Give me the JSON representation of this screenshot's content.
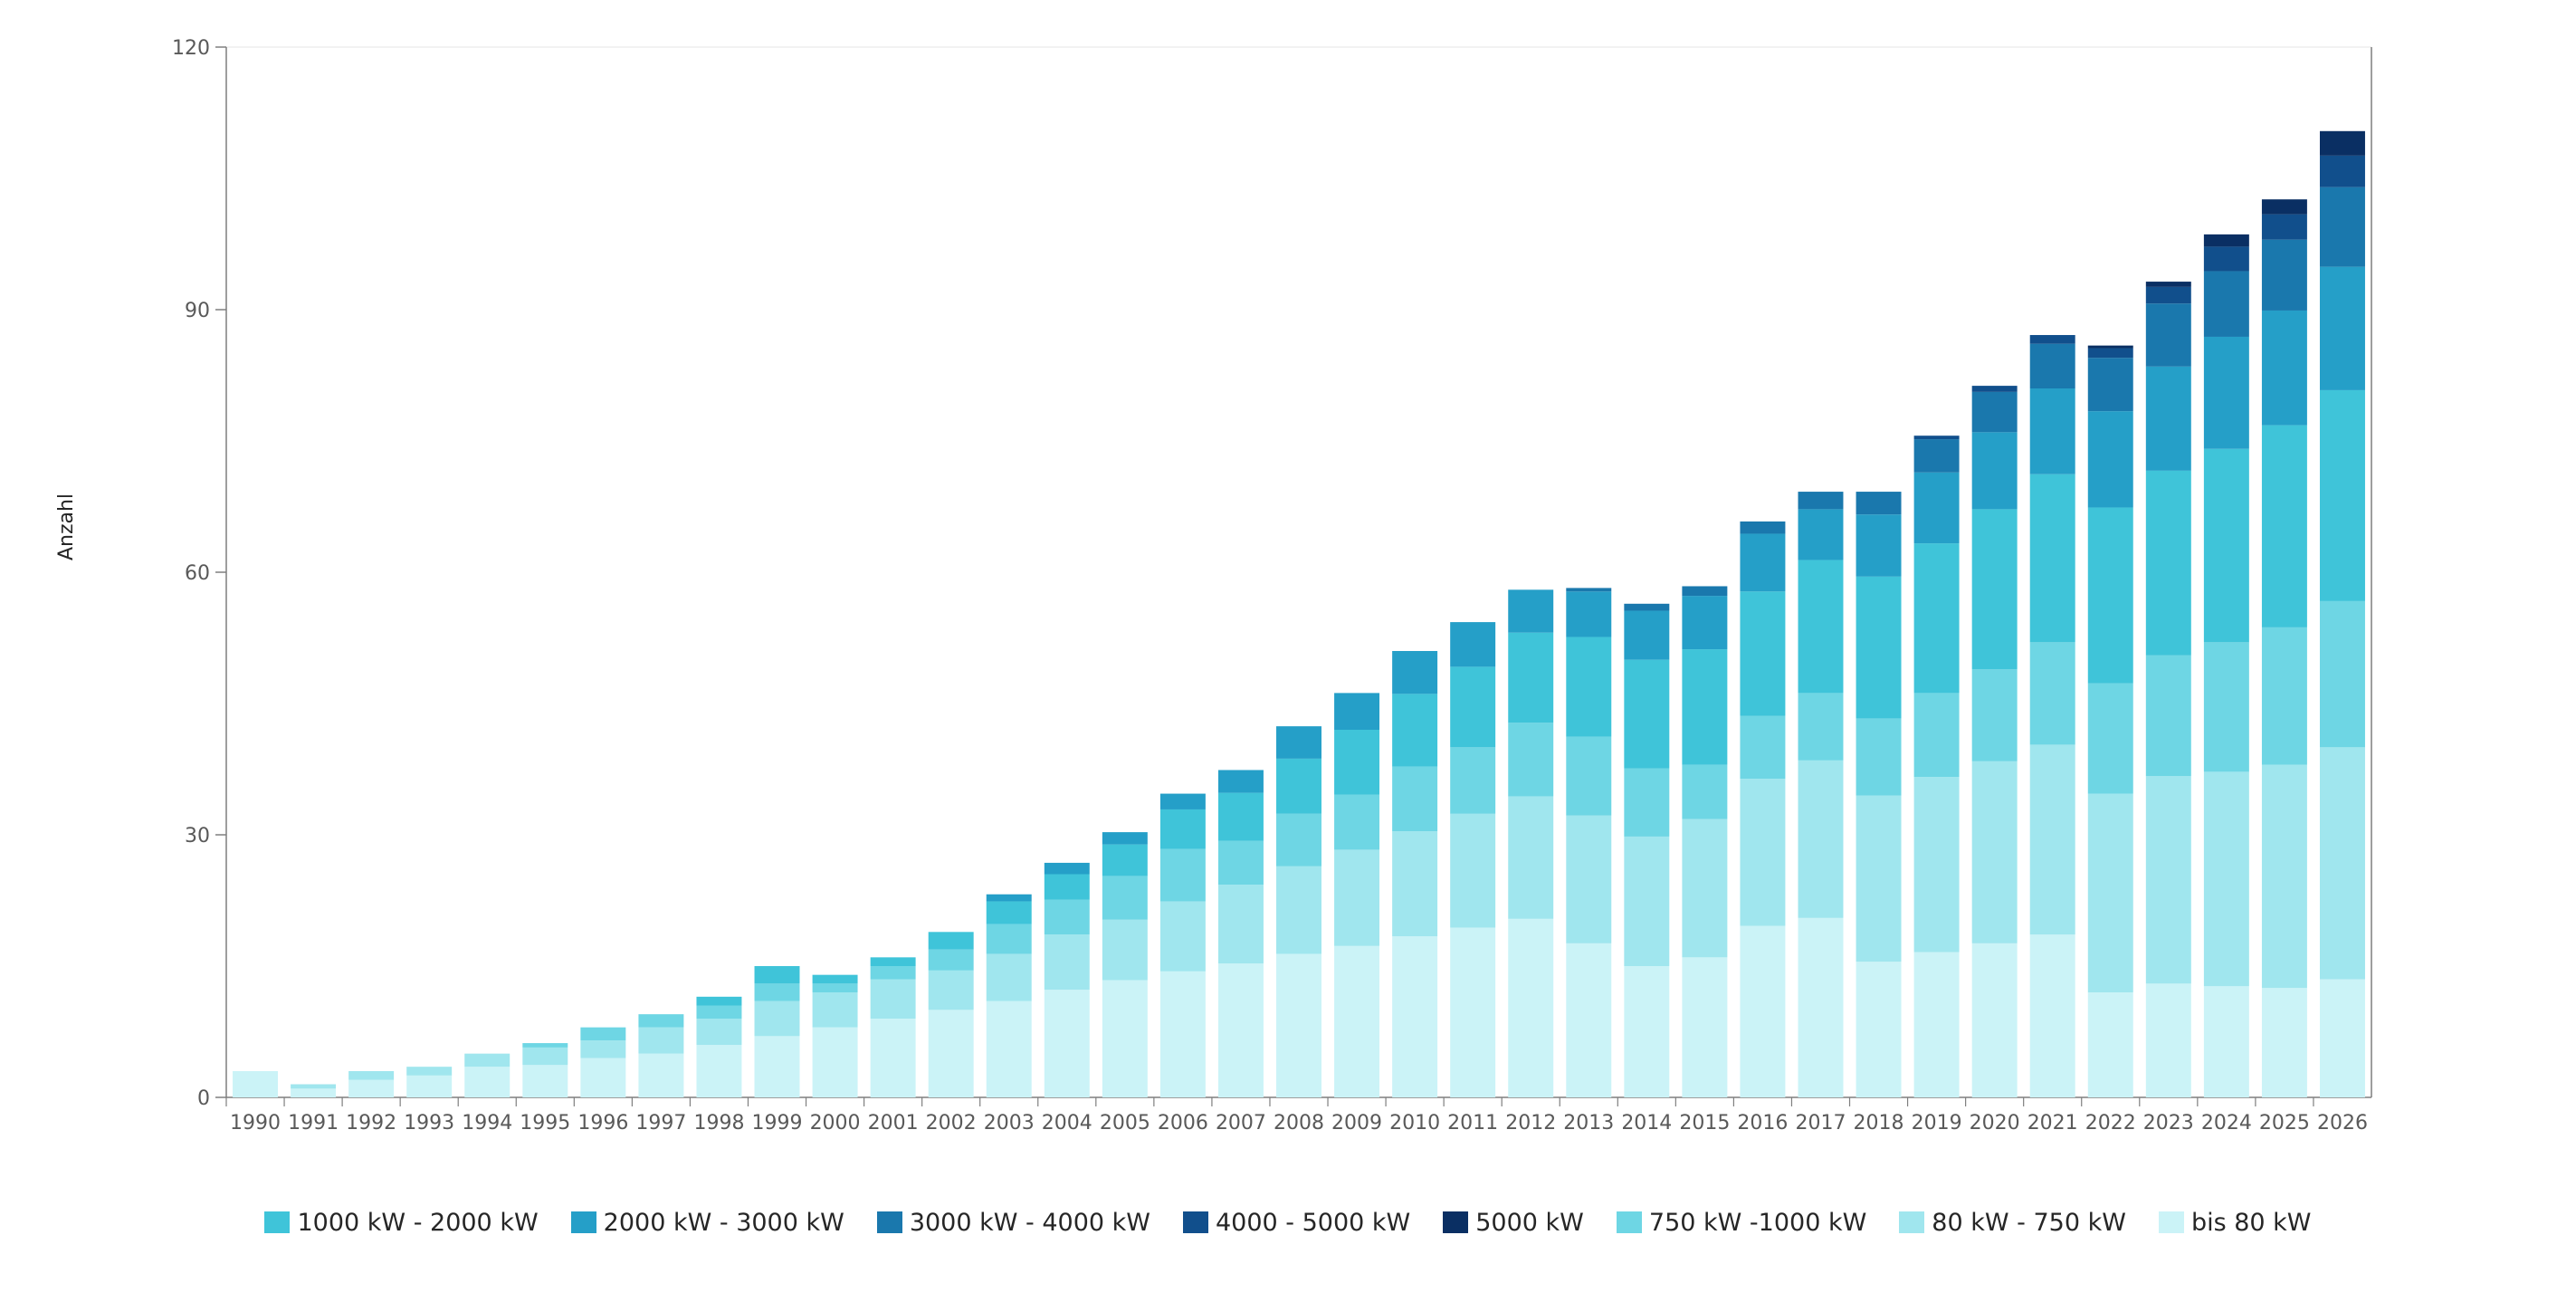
{
  "chart_data": {
    "type": "bar",
    "stacked": true,
    "ylabel": "Anzahl",
    "xlabel": "",
    "ylim": [
      0,
      120
    ],
    "yticks": [
      0,
      30,
      60,
      90,
      120
    ],
    "grid": false,
    "legend_position": "bottom",
    "categories": [
      "1990",
      "1991",
      "1992",
      "1993",
      "1994",
      "1995",
      "1996",
      "1997",
      "1998",
      "1999",
      "2000",
      "2001",
      "2002",
      "2003",
      "2004",
      "2005",
      "2006",
      "2007",
      "2008",
      "2009",
      "2010",
      "2011",
      "2012",
      "2013",
      "2014",
      "2015",
      "2016",
      "2017",
      "2018",
      "2019",
      "2020",
      "2021",
      "2022",
      "2023",
      "2024",
      "2025",
      "2026"
    ],
    "series": [
      {
        "name": "bis 80 kW",
        "color": "#cbf3f7",
        "values": [
          3,
          1,
          2,
          2.5,
          3.5,
          3.7,
          4.5,
          5,
          6,
          7,
          8,
          9,
          10,
          11,
          12.3,
          13.4,
          14.4,
          15.3,
          16.4,
          17.3,
          18.4,
          19.4,
          20.4,
          17.6,
          15,
          16,
          19.6,
          20.5,
          15.5,
          16.6,
          17.6,
          18.6,
          12,
          13,
          12.7,
          12.5,
          13.5
        ]
      },
      {
        "name": "80 kW - 750 kW",
        "color": "#a0e6ee",
        "values": [
          0,
          0.5,
          1,
          1,
          1.5,
          2,
          2,
          3,
          3,
          4,
          4,
          4.5,
          4.5,
          5.4,
          6.3,
          6.9,
          8,
          9,
          10,
          11,
          12,
          13,
          14,
          14.6,
          14.8,
          15.8,
          16.8,
          18,
          19,
          20,
          20.8,
          21.7,
          22.7,
          23.7,
          24.5,
          25.5,
          26.5
        ]
      },
      {
        "name": "750 kW -1000 kW",
        "color": "#6ed6e4",
        "values": [
          0,
          0,
          0,
          0,
          0,
          0.5,
          1.5,
          1.5,
          1.5,
          2,
          1,
          1.5,
          2.4,
          3.4,
          4,
          5,
          6,
          5,
          6,
          6.3,
          7.4,
          7.6,
          8.4,
          9,
          7.8,
          6.2,
          7.2,
          7.7,
          8.8,
          9.6,
          10.5,
          11.7,
          12.6,
          13.8,
          14.8,
          15.7,
          16.7
        ]
      },
      {
        "name": "1000 kW - 2000 kW",
        "color": "#3fc4d9",
        "values": [
          0,
          0,
          0,
          0,
          0,
          0,
          0,
          0,
          1,
          2,
          1,
          1,
          2,
          2.6,
          2.9,
          3.6,
          4.5,
          5.5,
          6.3,
          7.4,
          8.3,
          9.2,
          10.3,
          11.4,
          12.4,
          13.2,
          14.2,
          15.2,
          16.2,
          17.1,
          18.3,
          19.2,
          20.1,
          21.1,
          22.1,
          23.1,
          24.1
        ]
      },
      {
        "name": "2000 kW - 3000 kW",
        "color": "#259fc8",
        "values": [
          0,
          0,
          0,
          0,
          0,
          0,
          0,
          0,
          0,
          0,
          0,
          0,
          0,
          0.8,
          1.3,
          1.4,
          1.8,
          2.6,
          3.7,
          4.2,
          4.9,
          5.1,
          4.9,
          5.2,
          5.6,
          6.1,
          6.6,
          5.8,
          7.1,
          8.1,
          8.8,
          9.8,
          11,
          11.9,
          12.8,
          13.1,
          14.1
        ]
      },
      {
        "name": "3000 kW - 4000 kW",
        "color": "#1a78ad",
        "values": [
          0,
          0,
          0,
          0,
          0,
          0,
          0,
          0,
          0,
          0,
          0,
          0,
          0,
          0,
          0,
          0,
          0,
          0,
          0,
          0,
          0,
          0,
          0,
          0.4,
          0.8,
          1.1,
          1.4,
          2,
          2.6,
          3.8,
          4.6,
          5.1,
          6.1,
          7.2,
          7.5,
          8.1,
          9.1
        ]
      },
      {
        "name": "4000 - 5000 kW",
        "color": "#114f8c",
        "values": [
          0,
          0,
          0,
          0,
          0,
          0,
          0,
          0,
          0,
          0,
          0,
          0,
          0,
          0,
          0,
          0,
          0,
          0,
          0,
          0,
          0,
          0,
          0,
          0,
          0,
          0,
          0,
          0,
          0,
          0.4,
          0.7,
          1,
          1.1,
          1.9,
          2.8,
          2.9,
          3.6
        ]
      },
      {
        "name": "5000 kW",
        "color": "#0a2f63",
        "values": [
          0,
          0,
          0,
          0,
          0,
          0,
          0,
          0,
          0,
          0,
          0,
          0,
          0,
          0,
          0,
          0,
          0,
          0,
          0,
          0,
          0,
          0,
          0,
          0,
          0,
          0,
          0,
          0,
          0,
          0,
          0,
          0,
          0.3,
          0.6,
          1.4,
          1.7,
          2.8
        ]
      }
    ],
    "legend_order": [
      "1000 kW - 2000 kW",
      "2000 kW - 3000 kW",
      "3000 kW - 4000 kW",
      "4000 - 5000 kW",
      "5000 kW",
      "750 kW -1000 kW",
      "80 kW - 750 kW",
      "bis 80 kW"
    ]
  }
}
